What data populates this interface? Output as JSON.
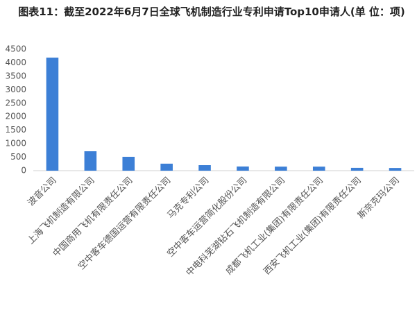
{
  "chart_data": {
    "type": "bar",
    "title": "图表11：截至2022年6月7日全球飞机制造行业专利申请Top10申请人(单 位：项)",
    "categories": [
      "波音公司",
      "上海飞机制造有限公司",
      "中国商用飞机有限责任公司",
      "空中客车德国运营有限责任公司",
      "马克专利公司",
      "空中客车运营简化股份公司",
      "中电科芜湖钻石飞机制造有限公司",
      "成都飞机工业(集团)有限责任公司",
      "西安飞机工业(集团)有限责任公司",
      "斯奈克玛公司"
    ],
    "values": [
      4190,
      720,
      515,
      260,
      205,
      155,
      150,
      150,
      105,
      100
    ],
    "color": "#3c7fd6",
    "ylim": [
      0,
      4500
    ],
    "yticks": [
      0,
      500,
      1000,
      1500,
      2000,
      2500,
      3000,
      3500,
      4000,
      4500
    ],
    "grid": false
  }
}
